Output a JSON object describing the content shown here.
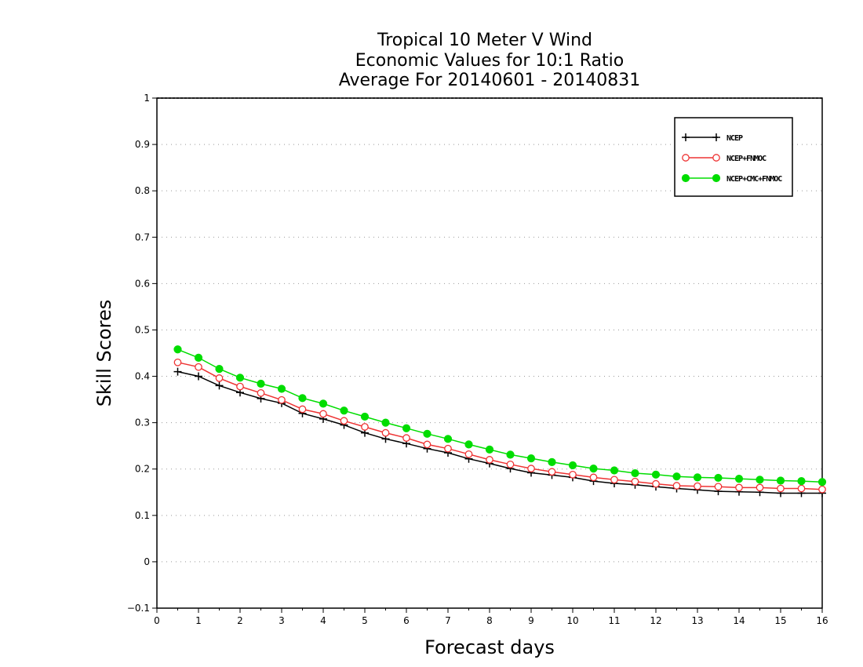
{
  "chart_data": {
    "type": "line",
    "title": [
      "Tropical 10 Meter V Wind",
      "Economic Values for 10:1 Ratio",
      "Average For 20140601 - 20140831"
    ],
    "xlabel": "Forecast days",
    "ylabel": "Skill Scores",
    "xlim": [
      0,
      16
    ],
    "ylim": [
      -0.1,
      1
    ],
    "xticks": [
      "0",
      "1",
      "2",
      "3",
      "4",
      "5",
      "6",
      "7",
      "8",
      "9",
      "10",
      "11",
      "12",
      "13",
      "14",
      "15",
      "16"
    ],
    "yticks": [
      "-0.1",
      "0",
      "0.1",
      "0.2",
      "0.3",
      "0.4",
      "0.5",
      "0.6",
      "0.7",
      "0.8",
      "0.9",
      "1"
    ],
    "grid": true,
    "legend_position": "top-right",
    "x": [
      0.5,
      1,
      1.5,
      2,
      2.5,
      3,
      3.5,
      4,
      4.5,
      5,
      5.5,
      6,
      6.5,
      7,
      7.5,
      8,
      8.5,
      9,
      9.5,
      10,
      10.5,
      11,
      11.5,
      12,
      12.5,
      13,
      13.5,
      14,
      14.5,
      15,
      15.5,
      16
    ],
    "series": [
      {
        "name": "NCEP",
        "color": "#000000",
        "marker": "plus",
        "values": [
          0.41,
          0.4,
          0.38,
          0.365,
          0.352,
          0.342,
          0.32,
          0.308,
          0.295,
          0.278,
          0.265,
          0.255,
          0.244,
          0.235,
          0.222,
          0.212,
          0.201,
          0.192,
          0.187,
          0.182,
          0.174,
          0.169,
          0.166,
          0.162,
          0.158,
          0.155,
          0.152,
          0.151,
          0.15,
          0.148,
          0.148,
          0.148
        ]
      },
      {
        "name": "NCEP+FNMOC",
        "color": "#ee3333",
        "marker": "open-circle",
        "values": [
          0.43,
          0.42,
          0.396,
          0.378,
          0.364,
          0.349,
          0.329,
          0.319,
          0.304,
          0.291,
          0.278,
          0.267,
          0.253,
          0.244,
          0.232,
          0.22,
          0.21,
          0.201,
          0.194,
          0.188,
          0.182,
          0.177,
          0.173,
          0.168,
          0.164,
          0.163,
          0.162,
          0.16,
          0.16,
          0.158,
          0.158,
          0.156
        ]
      },
      {
        "name": "NCEP+CMC+FNMOC",
        "color": "#00dd00",
        "marker": "filled-circle",
        "values": [
          0.458,
          0.44,
          0.416,
          0.397,
          0.384,
          0.373,
          0.353,
          0.341,
          0.326,
          0.313,
          0.3,
          0.288,
          0.276,
          0.265,
          0.253,
          0.242,
          0.231,
          0.223,
          0.215,
          0.208,
          0.201,
          0.197,
          0.191,
          0.188,
          0.184,
          0.182,
          0.181,
          0.179,
          0.177,
          0.175,
          0.174,
          0.172
        ]
      }
    ]
  }
}
